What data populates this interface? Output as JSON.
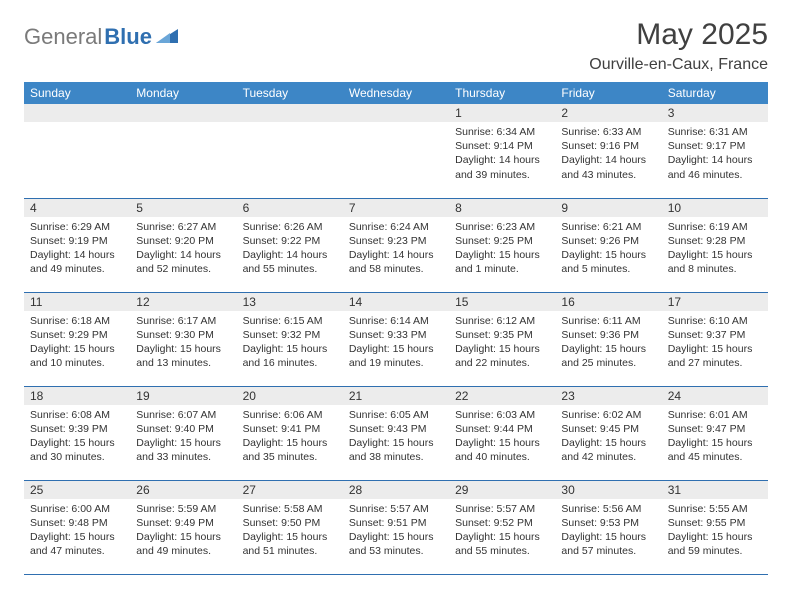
{
  "logo": {
    "gray": "General",
    "blue": "Blue"
  },
  "title": "May 2025",
  "location": "Ourville-en-Caux, France",
  "colors": {
    "header_bg": "#3d86c6",
    "header_text": "#ffffff",
    "daynum_bg": "#ececec",
    "border": "#2f6fb0",
    "logo_gray": "#7a7a7a",
    "logo_blue": "#2f6fb0"
  },
  "weekdays": [
    "Sunday",
    "Monday",
    "Tuesday",
    "Wednesday",
    "Thursday",
    "Friday",
    "Saturday"
  ],
  "weeks": [
    [
      {
        "n": "",
        "sunrise": "",
        "sunset": "",
        "daylight": ""
      },
      {
        "n": "",
        "sunrise": "",
        "sunset": "",
        "daylight": ""
      },
      {
        "n": "",
        "sunrise": "",
        "sunset": "",
        "daylight": ""
      },
      {
        "n": "",
        "sunrise": "",
        "sunset": "",
        "daylight": ""
      },
      {
        "n": "1",
        "sunrise": "Sunrise: 6:34 AM",
        "sunset": "Sunset: 9:14 PM",
        "daylight": "Daylight: 14 hours and 39 minutes."
      },
      {
        "n": "2",
        "sunrise": "Sunrise: 6:33 AM",
        "sunset": "Sunset: 9:16 PM",
        "daylight": "Daylight: 14 hours and 43 minutes."
      },
      {
        "n": "3",
        "sunrise": "Sunrise: 6:31 AM",
        "sunset": "Sunset: 9:17 PM",
        "daylight": "Daylight: 14 hours and 46 minutes."
      }
    ],
    [
      {
        "n": "4",
        "sunrise": "Sunrise: 6:29 AM",
        "sunset": "Sunset: 9:19 PM",
        "daylight": "Daylight: 14 hours and 49 minutes."
      },
      {
        "n": "5",
        "sunrise": "Sunrise: 6:27 AM",
        "sunset": "Sunset: 9:20 PM",
        "daylight": "Daylight: 14 hours and 52 minutes."
      },
      {
        "n": "6",
        "sunrise": "Sunrise: 6:26 AM",
        "sunset": "Sunset: 9:22 PM",
        "daylight": "Daylight: 14 hours and 55 minutes."
      },
      {
        "n": "7",
        "sunrise": "Sunrise: 6:24 AM",
        "sunset": "Sunset: 9:23 PM",
        "daylight": "Daylight: 14 hours and 58 minutes."
      },
      {
        "n": "8",
        "sunrise": "Sunrise: 6:23 AM",
        "sunset": "Sunset: 9:25 PM",
        "daylight": "Daylight: 15 hours and 1 minute."
      },
      {
        "n": "9",
        "sunrise": "Sunrise: 6:21 AM",
        "sunset": "Sunset: 9:26 PM",
        "daylight": "Daylight: 15 hours and 5 minutes."
      },
      {
        "n": "10",
        "sunrise": "Sunrise: 6:19 AM",
        "sunset": "Sunset: 9:28 PM",
        "daylight": "Daylight: 15 hours and 8 minutes."
      }
    ],
    [
      {
        "n": "11",
        "sunrise": "Sunrise: 6:18 AM",
        "sunset": "Sunset: 9:29 PM",
        "daylight": "Daylight: 15 hours and 10 minutes."
      },
      {
        "n": "12",
        "sunrise": "Sunrise: 6:17 AM",
        "sunset": "Sunset: 9:30 PM",
        "daylight": "Daylight: 15 hours and 13 minutes."
      },
      {
        "n": "13",
        "sunrise": "Sunrise: 6:15 AM",
        "sunset": "Sunset: 9:32 PM",
        "daylight": "Daylight: 15 hours and 16 minutes."
      },
      {
        "n": "14",
        "sunrise": "Sunrise: 6:14 AM",
        "sunset": "Sunset: 9:33 PM",
        "daylight": "Daylight: 15 hours and 19 minutes."
      },
      {
        "n": "15",
        "sunrise": "Sunrise: 6:12 AM",
        "sunset": "Sunset: 9:35 PM",
        "daylight": "Daylight: 15 hours and 22 minutes."
      },
      {
        "n": "16",
        "sunrise": "Sunrise: 6:11 AM",
        "sunset": "Sunset: 9:36 PM",
        "daylight": "Daylight: 15 hours and 25 minutes."
      },
      {
        "n": "17",
        "sunrise": "Sunrise: 6:10 AM",
        "sunset": "Sunset: 9:37 PM",
        "daylight": "Daylight: 15 hours and 27 minutes."
      }
    ],
    [
      {
        "n": "18",
        "sunrise": "Sunrise: 6:08 AM",
        "sunset": "Sunset: 9:39 PM",
        "daylight": "Daylight: 15 hours and 30 minutes."
      },
      {
        "n": "19",
        "sunrise": "Sunrise: 6:07 AM",
        "sunset": "Sunset: 9:40 PM",
        "daylight": "Daylight: 15 hours and 33 minutes."
      },
      {
        "n": "20",
        "sunrise": "Sunrise: 6:06 AM",
        "sunset": "Sunset: 9:41 PM",
        "daylight": "Daylight: 15 hours and 35 minutes."
      },
      {
        "n": "21",
        "sunrise": "Sunrise: 6:05 AM",
        "sunset": "Sunset: 9:43 PM",
        "daylight": "Daylight: 15 hours and 38 minutes."
      },
      {
        "n": "22",
        "sunrise": "Sunrise: 6:03 AM",
        "sunset": "Sunset: 9:44 PM",
        "daylight": "Daylight: 15 hours and 40 minutes."
      },
      {
        "n": "23",
        "sunrise": "Sunrise: 6:02 AM",
        "sunset": "Sunset: 9:45 PM",
        "daylight": "Daylight: 15 hours and 42 minutes."
      },
      {
        "n": "24",
        "sunrise": "Sunrise: 6:01 AM",
        "sunset": "Sunset: 9:47 PM",
        "daylight": "Daylight: 15 hours and 45 minutes."
      }
    ],
    [
      {
        "n": "25",
        "sunrise": "Sunrise: 6:00 AM",
        "sunset": "Sunset: 9:48 PM",
        "daylight": "Daylight: 15 hours and 47 minutes."
      },
      {
        "n": "26",
        "sunrise": "Sunrise: 5:59 AM",
        "sunset": "Sunset: 9:49 PM",
        "daylight": "Daylight: 15 hours and 49 minutes."
      },
      {
        "n": "27",
        "sunrise": "Sunrise: 5:58 AM",
        "sunset": "Sunset: 9:50 PM",
        "daylight": "Daylight: 15 hours and 51 minutes."
      },
      {
        "n": "28",
        "sunrise": "Sunrise: 5:57 AM",
        "sunset": "Sunset: 9:51 PM",
        "daylight": "Daylight: 15 hours and 53 minutes."
      },
      {
        "n": "29",
        "sunrise": "Sunrise: 5:57 AM",
        "sunset": "Sunset: 9:52 PM",
        "daylight": "Daylight: 15 hours and 55 minutes."
      },
      {
        "n": "30",
        "sunrise": "Sunrise: 5:56 AM",
        "sunset": "Sunset: 9:53 PM",
        "daylight": "Daylight: 15 hours and 57 minutes."
      },
      {
        "n": "31",
        "sunrise": "Sunrise: 5:55 AM",
        "sunset": "Sunset: 9:55 PM",
        "daylight": "Daylight: 15 hours and 59 minutes."
      }
    ]
  ]
}
